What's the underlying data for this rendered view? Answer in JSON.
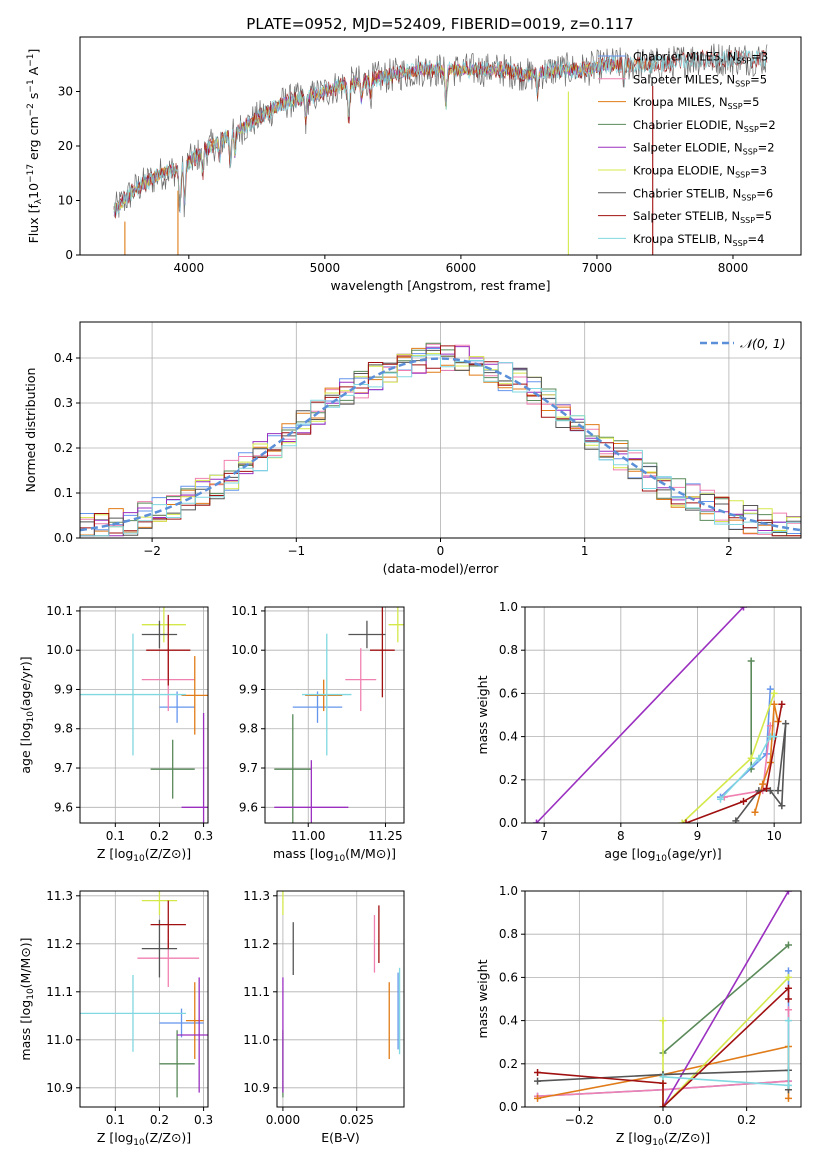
{
  "figure": {
    "title": "PLATE=0952, MJD=52409, FIBERID=0019, z=0.117"
  },
  "colors": {
    "series": [
      "#6495ed",
      "#f080b0",
      "#e07b18",
      "#5a8a5a",
      "#9b30c0",
      "#d4e84a",
      "#555555",
      "#a01010",
      "#80d8e0"
    ],
    "gaussian": "#5b8fd8"
  },
  "chart_data": [
    {
      "id": "spectrum",
      "type": "line",
      "title": "PLATE=0952, MJD=52409, FIBERID=0019, z=0.117",
      "xlabel": "wavelength [Angstrom, rest frame]",
      "ylabel": "Flux [f_λ 10^-17 erg cm^-2 s^-1 A^-1]",
      "xlim": [
        3200,
        8500
      ],
      "ylim": [
        0,
        40
      ],
      "xticks": [
        4000,
        5000,
        6000,
        7000,
        8000
      ],
      "yticks": [
        0,
        10,
        20,
        30
      ],
      "grid": false,
      "legend_position": "top-right",
      "legend": [
        {
          "name": "Chabrier MILES, N_SSP=3",
          "base": "Chabrier MILES, N",
          "sub": "SSP",
          "tail": "=3"
        },
        {
          "name": "Salpeter MILES, N_SSP=5",
          "base": "Salpeter MILES, N",
          "sub": "SSP",
          "tail": "=5"
        },
        {
          "name": "Kroupa MILES, N_SSP=5",
          "base": "Kroupa MILES, N",
          "sub": "SSP",
          "tail": "=5"
        },
        {
          "name": "Chabrier ELODIE, N_SSP=2",
          "base": "Chabrier ELODIE, N",
          "sub": "SSP",
          "tail": "=2"
        },
        {
          "name": "Salpeter ELODIE, N_SSP=2",
          "base": "Salpeter ELODIE, N",
          "sub": "SSP",
          "tail": "=2"
        },
        {
          "name": "Kroupa ELODIE, N_SSP=3",
          "base": "Kroupa ELODIE, N",
          "sub": "SSP",
          "tail": "=3"
        },
        {
          "name": "Chabrier STELIB, N_SSP=6",
          "base": "Chabrier STELIB, N",
          "sub": "SSP",
          "tail": "=6"
        },
        {
          "name": "Salpeter STELIB, N_SSP=5",
          "base": "Salpeter STELIB, N",
          "sub": "SSP",
          "tail": "=5"
        },
        {
          "name": "Kroupa STELIB, N_SSP=4",
          "base": "Kroupa STELIB, N",
          "sub": "SSP",
          "tail": "=4"
        }
      ],
      "continuum": [
        [
          3450,
          8
        ],
        [
          3600,
          12
        ],
        [
          3800,
          15
        ],
        [
          3950,
          16
        ],
        [
          4100,
          19
        ],
        [
          4300,
          22
        ],
        [
          4500,
          25
        ],
        [
          4700,
          28
        ],
        [
          4900,
          29
        ],
        [
          5100,
          31
        ],
        [
          5300,
          32
        ],
        [
          5500,
          33
        ],
        [
          5700,
          34
        ],
        [
          5900,
          34
        ],
        [
          6100,
          34
        ],
        [
          6300,
          34
        ],
        [
          6500,
          33
        ],
        [
          6700,
          34
        ],
        [
          6900,
          34
        ],
        [
          7100,
          35
        ],
        [
          7300,
          35
        ],
        [
          7500,
          35
        ],
        [
          7700,
          36
        ],
        [
          7900,
          36
        ],
        [
          8100,
          36
        ],
        [
          8250,
          36
        ]
      ],
      "absorption_lines": [
        [
          3934,
          8
        ],
        [
          3969,
          7
        ],
        [
          4102,
          4
        ],
        [
          4227,
          3
        ],
        [
          4305,
          5
        ],
        [
          4340,
          4
        ],
        [
          4861,
          4
        ],
        [
          5175,
          7
        ],
        [
          5270,
          4
        ],
        [
          5335,
          3
        ],
        [
          5890,
          7
        ],
        [
          6563,
          4
        ],
        [
          7200,
          3
        ]
      ],
      "spikes": [
        [
          3530,
          0
        ],
        [
          3920,
          0
        ],
        [
          6790,
          0
        ],
        [
          7410,
          0
        ]
      ],
      "series_extent": [
        [
          3450,
          7150
        ],
        [
          3450,
          7150
        ],
        [
          3450,
          7450
        ],
        [
          3450,
          7150
        ],
        [
          3450,
          7150
        ],
        [
          3450,
          7150
        ],
        [
          3450,
          8250
        ],
        [
          3450,
          8250
        ],
        [
          3450,
          8250
        ]
      ]
    },
    {
      "id": "residual-histogram",
      "type": "bar",
      "xlabel": "(data-model)/error",
      "ylabel": "Normed distribution",
      "xlim": [
        -2.5,
        2.5
      ],
      "ylim": [
        0,
        0.48
      ],
      "xticks": [
        -2,
        -1,
        0,
        1,
        2
      ],
      "yticks": [
        0.0,
        0.1,
        0.2,
        0.3,
        0.4
      ],
      "grid": true,
      "bins": {
        "start": -2.5,
        "width": 0.1,
        "count": 50
      },
      "gaussian_label": "𝒩(0, 1)",
      "gaussian": {
        "mean": 0,
        "sigma": 1
      },
      "legend_position": "top-right"
    },
    {
      "id": "age-vs-Z",
      "type": "scatter",
      "xlabel": "Z [log10(Z/Z⊙)]",
      "xlabel_base": "Z [log",
      "xlabel_sub": "10",
      "xlabel_tail": "(Z/Z⊙)]",
      "ylabel_base": "age  [log",
      "ylabel_sub": "10",
      "ylabel_tail": "(age/yr)]",
      "xlim": [
        0.02,
        0.31
      ],
      "ylim": [
        9.56,
        10.11
      ],
      "xticks": [
        0.1,
        0.2,
        0.3
      ],
      "yticks": [
        9.6,
        9.7,
        9.8,
        9.9,
        10.0,
        10.1
      ],
      "grid": true,
      "points": [
        {
          "x": 0.24,
          "xerr": 0.04,
          "y": 9.855,
          "yerr": 0.04
        },
        {
          "x": 0.22,
          "xerr": 0.06,
          "y": 9.925,
          "yerr": 0.08
        },
        {
          "x": 0.28,
          "xerr": 0.03,
          "y": 9.885,
          "yerr": 0.1
        },
        {
          "x": 0.23,
          "xerr": 0.05,
          "y": 9.697,
          "yerr": 0.075
        },
        {
          "x": 0.3,
          "xerr": 0.05,
          "y": 9.6,
          "yerr": 0.24
        },
        {
          "x": 0.21,
          "xerr": 0.05,
          "y": 10.065,
          "yerr": 0.045
        },
        {
          "x": 0.2,
          "xerr": 0.04,
          "y": 10.04,
          "yerr": 0.035
        },
        {
          "x": 0.22,
          "xerr": 0.05,
          "y": 10.0,
          "yerr": 0.09
        },
        {
          "x": 0.14,
          "xerr": 0.12,
          "y": 9.887,
          "yerr": 0.155
        }
      ]
    },
    {
      "id": "age-vs-mass",
      "type": "scatter",
      "xlabel": "mass [log10(M/M⊙)]",
      "xlabel_base": "mass [log",
      "xlabel_sub": "10",
      "xlabel_tail": "(M/M⊙)]",
      "xlim": [
        10.86,
        11.31
      ],
      "ylim": [
        9.56,
        10.11
      ],
      "xticks": [
        11.0,
        11.25
      ],
      "yticks": [
        9.6,
        9.7,
        9.8,
        9.9,
        10.0,
        10.1
      ],
      "grid": true,
      "points": [
        {
          "x": 11.03,
          "xerr": 0.08,
          "y": 9.855,
          "yerr": 0.04
        },
        {
          "x": 11.17,
          "xerr": 0.05,
          "y": 9.925,
          "yerr": 0.08
        },
        {
          "x": 11.05,
          "xerr": 0.06,
          "y": 9.885,
          "yerr": 0.04
        },
        {
          "x": 10.95,
          "xerr": 0.06,
          "y": 9.697,
          "yerr": 0.14
        },
        {
          "x": 11.01,
          "xerr": 0.12,
          "y": 9.6,
          "yerr": 0.12
        },
        {
          "x": 11.29,
          "xerr": 0.03,
          "y": 10.065,
          "yerr": 0.045
        },
        {
          "x": 11.19,
          "xerr": 0.06,
          "y": 10.04,
          "yerr": 0.035
        },
        {
          "x": 11.24,
          "xerr": 0.04,
          "y": 10.0,
          "yerr": 0.12
        },
        {
          "x": 11.06,
          "xerr": 0.08,
          "y": 9.887,
          "yerr": 0.155
        }
      ]
    },
    {
      "id": "mass-weight-vs-age",
      "type": "line",
      "xlabel": "age  [log10(age/yr)]",
      "xlabel_base": "age  [log",
      "xlabel_sub": "10",
      "xlabel_tail": "(age/yr)]",
      "ylabel": "mass weight",
      "xlim": [
        6.75,
        10.35
      ],
      "ylim": [
        0,
        1.0
      ],
      "xticks": [
        7,
        8,
        9,
        10
      ],
      "yticks": [
        0.0,
        0.2,
        0.4,
        0.6,
        0.8,
        1.0
      ],
      "grid": true,
      "series": [
        {
          "points": [
            [
              9.3,
              0.12
            ],
            [
              9.9,
              0.32
            ],
            [
              9.95,
              0.62
            ]
          ]
        },
        {
          "points": [
            [
              9.35,
              0.12
            ],
            [
              9.85,
              0.15
            ],
            [
              9.95,
              0.45
            ]
          ]
        },
        {
          "points": [
            [
              9.75,
              0.05
            ],
            [
              9.85,
              0.18
            ],
            [
              9.95,
              0.28
            ],
            [
              10.0,
              0.55
            ],
            [
              10.05,
              0.47
            ]
          ]
        },
        {
          "points": [
            [
              9.7,
              0.25
            ],
            [
              9.7,
              0.75
            ]
          ]
        },
        {
          "points": [
            [
              6.9,
              0.0
            ],
            [
              9.6,
              1.0
            ]
          ]
        },
        {
          "points": [
            [
              8.8,
              0.0
            ],
            [
              9.7,
              0.3
            ],
            [
              10.0,
              0.6
            ]
          ]
        },
        {
          "points": [
            [
              9.5,
              0.01
            ],
            [
              9.8,
              0.15
            ],
            [
              9.95,
              0.15
            ],
            [
              10.1,
              0.08
            ],
            [
              10.15,
              0.46
            ],
            [
              10.05,
              0.15
            ]
          ]
        },
        {
          "points": [
            [
              8.85,
              0.0
            ],
            [
              9.6,
              0.1
            ],
            [
              9.9,
              0.16
            ],
            [
              10.1,
              0.55
            ]
          ]
        },
        {
          "points": [
            [
              9.3,
              0.11
            ],
            [
              9.8,
              0.3
            ],
            [
              9.95,
              0.4
            ],
            [
              10.0,
              0.4
            ]
          ]
        }
      ]
    },
    {
      "id": "mass-vs-Z",
      "type": "scatter",
      "xlabel": "Z [log10(Z/Z⊙)]",
      "xlabel_base": "Z [log",
      "xlabel_sub": "10",
      "xlabel_tail": "(Z/Z⊙)]",
      "ylabel_base": "mass [log",
      "ylabel_sub": "10",
      "ylabel_tail": "(M/M⊙)]",
      "xlim": [
        0.02,
        0.31
      ],
      "ylim": [
        10.86,
        11.31
      ],
      "xticks": [
        0.1,
        0.2,
        0.3
      ],
      "yticks": [
        10.9,
        11.0,
        11.1,
        11.2,
        11.3
      ],
      "grid": true,
      "points": [
        {
          "x": 0.25,
          "xerr": 0.05,
          "y": 11.035,
          "yerr": 0.03
        },
        {
          "x": 0.22,
          "xerr": 0.07,
          "y": 11.17,
          "yerr": 0.06
        },
        {
          "x": 0.28,
          "xerr": 0.02,
          "y": 11.04,
          "yerr": 0.08
        },
        {
          "x": 0.24,
          "xerr": 0.04,
          "y": 10.95,
          "yerr": 0.07
        },
        {
          "x": 0.29,
          "xerr": 0.05,
          "y": 11.01,
          "yerr": 0.12
        },
        {
          "x": 0.2,
          "xerr": 0.04,
          "y": 11.29,
          "yerr": 0.03
        },
        {
          "x": 0.2,
          "xerr": 0.04,
          "y": 11.19,
          "yerr": 0.06
        },
        {
          "x": 0.22,
          "xerr": 0.04,
          "y": 11.24,
          "yerr": 0.05
        },
        {
          "x": 0.14,
          "xerr": 0.12,
          "y": 11.055,
          "yerr": 0.08
        }
      ]
    },
    {
      "id": "mass-vs-ebv",
      "type": "scatter",
      "xlabel": "E(B-V)",
      "xlim": [
        -0.002,
        0.041
      ],
      "ylim": [
        10.86,
        11.31
      ],
      "xticks": [
        0.0,
        0.025
      ],
      "xtick_labels": [
        "0.000",
        "0.025"
      ],
      "yticks": [
        10.9,
        11.0,
        11.1,
        11.2,
        11.3
      ],
      "grid": true,
      "points": [
        {
          "x": 0.039,
          "xerr": 0.0,
          "y": 11.06,
          "yerr": 0.08
        },
        {
          "x": 0.031,
          "xerr": 0.0,
          "y": 11.2,
          "yerr": 0.06
        },
        {
          "x": 0.036,
          "xerr": 0.0,
          "y": 11.04,
          "yerr": 0.08
        },
        {
          "x": 0.0,
          "xerr": 0.0,
          "y": 10.95,
          "yerr": 0.07
        },
        {
          "x": 0.0,
          "xerr": 0.0,
          "y": 11.01,
          "yerr": 0.12
        },
        {
          "x": 0.0,
          "xerr": 0.0,
          "y": 11.29,
          "yerr": 0.03
        },
        {
          "x": 0.0035,
          "xerr": 0.0,
          "y": 11.19,
          "yerr": 0.055
        },
        {
          "x": 0.0325,
          "xerr": 0.0,
          "y": 11.22,
          "yerr": 0.06
        },
        {
          "x": 0.0395,
          "xerr": 0.0,
          "y": 11.06,
          "yerr": 0.09
        }
      ]
    },
    {
      "id": "mass-weight-vs-Z",
      "type": "line",
      "xlabel": "Z [log10(Z/Z⊙)]",
      "xlabel_base": "Z [log",
      "xlabel_sub": "10",
      "xlabel_tail": "(Z/Z⊙)]",
      "ylabel": "mass weight",
      "xlim": [
        -0.33,
        0.33
      ],
      "ylim": [
        0,
        1.0
      ],
      "xticks": [
        -0.2,
        0.0,
        0.2
      ],
      "yticks": [
        0.0,
        0.2,
        0.4,
        0.6,
        0.8,
        1.0
      ],
      "grid": true,
      "series": [
        {
          "points": [
            [
              -0.3,
              0.05
            ],
            [
              0.0,
              0.08
            ],
            [
              0.3,
              0.12
            ],
            [
              0.3,
              0.63
            ]
          ]
        },
        {
          "points": [
            [
              -0.3,
              0.05
            ],
            [
              0.0,
              0.08
            ],
            [
              0.3,
              0.12
            ],
            [
              0.3,
              0.45
            ]
          ]
        },
        {
          "points": [
            [
              -0.3,
              0.04
            ],
            [
              0.0,
              0.15
            ],
            [
              0.3,
              0.28
            ],
            [
              0.3,
              0.04
            ]
          ]
        },
        {
          "points": [
            [
              0.0,
              0.25
            ],
            [
              0.3,
              0.75
            ]
          ]
        },
        {
          "points": [
            [
              0.0,
              0.0
            ],
            [
              0.3,
              1.0
            ]
          ]
        },
        {
          "points": [
            [
              0.0,
              0.4
            ],
            [
              0.0,
              0.0
            ],
            [
              0.3,
              0.6
            ]
          ]
        },
        {
          "points": [
            [
              -0.3,
              0.12
            ],
            [
              0.0,
              0.15
            ],
            [
              0.3,
              0.17
            ],
            [
              0.3,
              0.08
            ]
          ]
        },
        {
          "points": [
            [
              -0.3,
              0.16
            ],
            [
              0.0,
              0.11
            ],
            [
              0.0,
              0.0
            ],
            [
              0.3,
              0.55
            ],
            [
              0.3,
              0.5
            ]
          ]
        },
        {
          "points": [
            [
              0.0,
              0.14
            ],
            [
              0.3,
              0.1
            ],
            [
              0.3,
              0.4
            ]
          ]
        }
      ]
    }
  ]
}
